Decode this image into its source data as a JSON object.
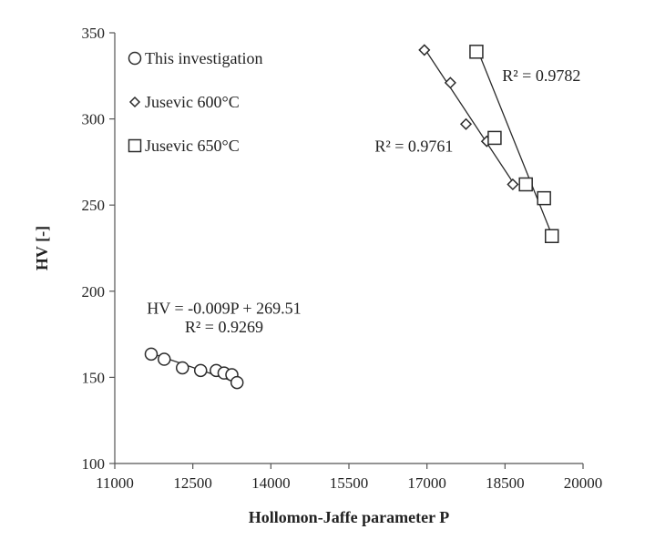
{
  "chart_data": {
    "type": "scatter",
    "xlabel": "Hollomon-Jaffe parameter P",
    "ylabel": "HV [-]",
    "xlim": [
      11000,
      20000
    ],
    "ylim": [
      100,
      350
    ],
    "x_ticks": [
      "11000",
      "12500",
      "14000",
      "15500",
      "17000",
      "18500",
      "20000"
    ],
    "y_ticks": [
      "100",
      "150",
      "200",
      "250",
      "300",
      "350"
    ],
    "grid": false,
    "legend_position": "top-left",
    "series": [
      {
        "name": "This investigation",
        "marker": "circle",
        "x": [
          11700,
          11950,
          12300,
          12650,
          12950,
          13100,
          13250,
          13350
        ],
        "y": [
          163.5,
          160.5,
          155.5,
          154,
          154,
          152.5,
          151.5,
          147
        ],
        "trendline": {
          "x": [
            11700,
            13350
          ],
          "y": [
            164,
            147
          ]
        }
      },
      {
        "name": "Jusevic 600°C",
        "marker": "diamond",
        "x": [
          16950,
          17450,
          17750,
          18150,
          18650
        ],
        "y": [
          340,
          321,
          297,
          287,
          262
        ],
        "trendline": {
          "x": [
            16950,
            18700
          ],
          "y": [
            341,
            261
          ]
        }
      },
      {
        "name": "Jusevic 650°C",
        "marker": "square",
        "x": [
          17950,
          18300,
          18900,
          19250,
          19400
        ],
        "y": [
          339,
          289,
          262,
          254,
          232
        ],
        "trendline": {
          "x": [
            18000,
            19450
          ],
          "y": [
            338,
            229
          ]
        }
      }
    ],
    "annotations": [
      {
        "text": "HV = -0.009P + 269.51",
        "x": 13100,
        "y": 187
      },
      {
        "text": "R² = 0.9269",
        "x": 13100,
        "y": 176
      },
      {
        "text": "R² = 0.9782",
        "x": 19200,
        "y": 322
      },
      {
        "text": "R² = 0.9761",
        "x": 16750,
        "y": 281
      }
    ]
  },
  "colors": {
    "marker_fill": "#ffffff",
    "marker_stroke": "#2b2b2b",
    "line": "#2b2b2b",
    "axis": "#555555"
  }
}
